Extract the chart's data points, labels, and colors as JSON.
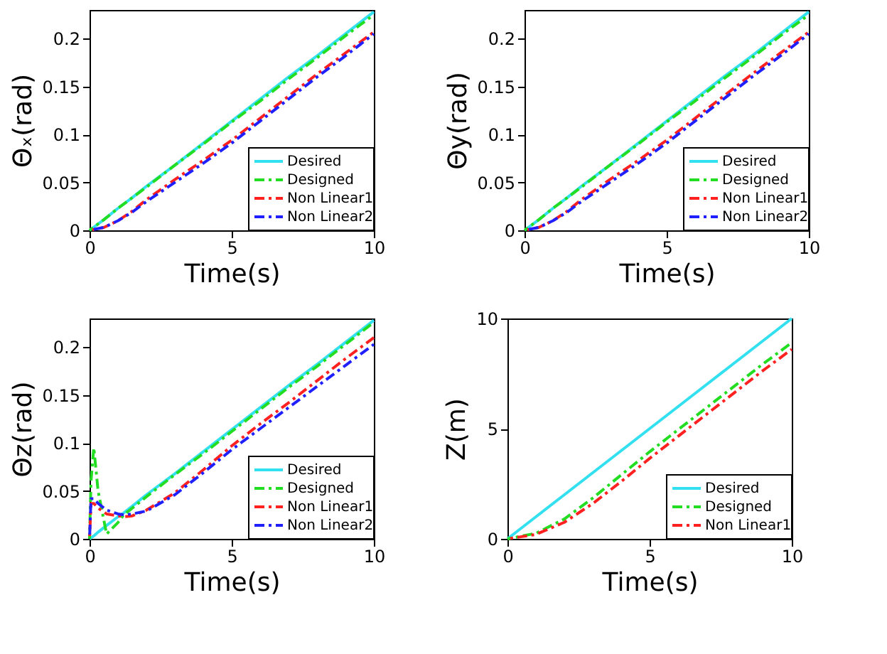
{
  "chart_data": [
    {
      "type": "line",
      "xlabel": "Time(s)",
      "ylabel": "Θₓ(rad)",
      "xlim": [
        0,
        10
      ],
      "xticks": [
        0,
        5,
        10
      ],
      "ylim": [
        0,
        0.23
      ],
      "yticks": [
        0,
        0.05,
        0.1,
        0.15,
        0.2
      ],
      "legend": "bottom right",
      "grid": false,
      "x": [
        0,
        0.5,
        1,
        1.5,
        2,
        3,
        4,
        5,
        6,
        7,
        8,
        9,
        10
      ],
      "series": [
        {
          "name": "Desired",
          "color": "#33e0f0",
          "line_style": "solid",
          "values": [
            0,
            0.011,
            0.023,
            0.034,
            0.046,
            0.068,
            0.091,
            0.114,
            0.137,
            0.16,
            0.182,
            0.205,
            0.228
          ]
        },
        {
          "name": "Designed",
          "color": "#22dd22",
          "line_style": "dashed",
          "values": [
            0,
            0.011,
            0.023,
            0.034,
            0.045,
            0.068,
            0.09,
            0.113,
            0.135,
            0.158,
            0.18,
            0.203,
            0.225
          ]
        },
        {
          "name": "Non Linear1",
          "color": "#ff2020",
          "line_style": "dashed",
          "values": [
            0,
            0.003,
            0.01,
            0.02,
            0.032,
            0.053,
            0.073,
            0.094,
            0.117,
            0.14,
            0.163,
            0.185,
            0.207
          ]
        },
        {
          "name": "Non Linear2",
          "color": "#2020ff",
          "line_style": "dashed",
          "values": [
            0,
            0.003,
            0.01,
            0.019,
            0.03,
            0.05,
            0.07,
            0.091,
            0.114,
            0.137,
            0.16,
            0.182,
            0.205
          ]
        }
      ]
    },
    {
      "type": "line",
      "xlabel": "Time(s)",
      "ylabel": "Θy(rad)",
      "xlim": [
        0,
        10
      ],
      "xticks": [
        0,
        5,
        10
      ],
      "ylim": [
        0,
        0.23
      ],
      "yticks": [
        0,
        0.05,
        0.1,
        0.15,
        0.2
      ],
      "legend": "bottom right",
      "grid": false,
      "x": [
        0,
        0.5,
        1,
        1.5,
        2,
        3,
        4,
        5,
        6,
        7,
        8,
        9,
        10
      ],
      "series": [
        {
          "name": "Desired",
          "color": "#33e0f0",
          "line_style": "solid",
          "values": [
            0,
            0.011,
            0.023,
            0.034,
            0.046,
            0.068,
            0.091,
            0.114,
            0.137,
            0.16,
            0.182,
            0.205,
            0.228
          ]
        },
        {
          "name": "Designed",
          "color": "#22dd22",
          "line_style": "dashed",
          "values": [
            0,
            0.011,
            0.023,
            0.034,
            0.045,
            0.068,
            0.09,
            0.113,
            0.135,
            0.158,
            0.18,
            0.203,
            0.225
          ]
        },
        {
          "name": "Non Linear1",
          "color": "#ff2020",
          "line_style": "dashed",
          "values": [
            0,
            0.003,
            0.01,
            0.02,
            0.032,
            0.053,
            0.073,
            0.094,
            0.117,
            0.14,
            0.163,
            0.185,
            0.207
          ]
        },
        {
          "name": "Non Linear2",
          "color": "#2020ff",
          "line_style": "dashed",
          "values": [
            0,
            0.003,
            0.01,
            0.019,
            0.03,
            0.05,
            0.07,
            0.091,
            0.114,
            0.137,
            0.16,
            0.182,
            0.205
          ]
        }
      ]
    },
    {
      "type": "line",
      "xlabel": "Time(s)",
      "ylabel": "Θz(rad)",
      "xlim": [
        0,
        10
      ],
      "xticks": [
        0,
        5,
        10
      ],
      "ylim": [
        0,
        0.23
      ],
      "yticks": [
        0,
        0.05,
        0.1,
        0.15,
        0.2
      ],
      "legend": "bottom right",
      "grid": false,
      "x": [
        0,
        0.05,
        0.15,
        0.3,
        0.6,
        1,
        1.2,
        1.5,
        2,
        3,
        4,
        5,
        6,
        7,
        8,
        9,
        10
      ],
      "series": [
        {
          "name": "Desired",
          "color": "#33e0f0",
          "line_style": "solid",
          "values": [
            0,
            0.001,
            0.003,
            0.007,
            0.014,
            0.023,
            0.027,
            0.034,
            0.046,
            0.068,
            0.091,
            0.114,
            0.137,
            0.16,
            0.182,
            0.205,
            0.228
          ]
        },
        {
          "name": "Designed",
          "color": "#22dd22",
          "line_style": "dashed",
          "values": [
            0,
            0.06,
            0.095,
            0.05,
            0.005,
            0.017,
            0.025,
            0.032,
            0.044,
            0.067,
            0.089,
            0.112,
            0.135,
            0.158,
            0.18,
            0.203,
            0.226
          ]
        },
        {
          "name": "Non Linear1",
          "color": "#ff2020",
          "line_style": "dashed",
          "values": [
            0,
            0.037,
            0.037,
            0.032,
            0.026,
            0.024,
            0.023,
            0.024,
            0.03,
            0.048,
            0.072,
            0.097,
            0.12,
            0.142,
            0.165,
            0.188,
            0.21
          ]
        },
        {
          "name": "Non Linear2",
          "color": "#2020ff",
          "line_style": "dashed",
          "values": [
            0,
            0.042,
            0.042,
            0.037,
            0.03,
            0.026,
            0.025,
            0.026,
            0.029,
            0.046,
            0.069,
            0.093,
            0.115,
            0.137,
            0.159,
            0.181,
            0.203
          ]
        }
      ]
    },
    {
      "type": "line",
      "xlabel": "Time(s)",
      "ylabel": "Z(m)",
      "xlim": [
        0,
        10
      ],
      "xticks": [
        0,
        5,
        10
      ],
      "ylim": [
        0,
        10
      ],
      "yticks": [
        0,
        5,
        10
      ],
      "legend": "bottom right",
      "grid": false,
      "x": [
        0,
        1,
        2,
        3,
        4,
        5,
        6,
        7,
        8,
        9,
        10
      ],
      "series": [
        {
          "name": "Desired",
          "color": "#33e0f0",
          "line_style": "solid",
          "values": [
            0,
            1,
            2,
            3,
            4,
            5,
            6,
            7,
            8,
            9,
            10
          ]
        },
        {
          "name": "Designed",
          "color": "#22dd22",
          "line_style": "dashed",
          "values": [
            0,
            0.25,
            0.9,
            1.85,
            2.9,
            3.95,
            4.95,
            5.95,
            6.95,
            7.95,
            8.9
          ]
        },
        {
          "name": "Non Linear1",
          "color": "#ff2020",
          "line_style": "dashed",
          "values": [
            0,
            0.2,
            0.75,
            1.6,
            2.6,
            3.65,
            4.65,
            5.65,
            6.65,
            7.65,
            8.6
          ]
        }
      ]
    }
  ]
}
